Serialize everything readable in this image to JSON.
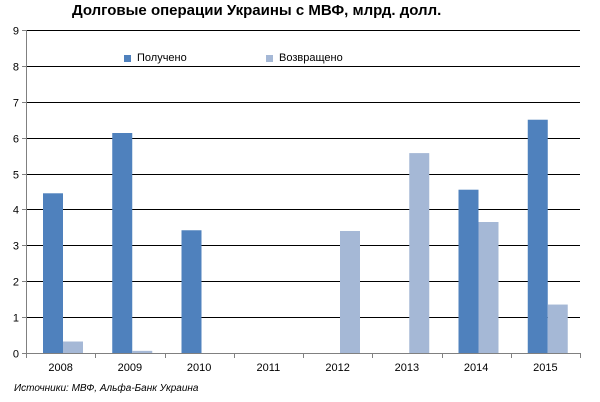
{
  "chart_data": {
    "type": "bar",
    "title": "Долговые операции Украины с МВФ, млрд. долл.",
    "xlabel": "",
    "ylabel": "",
    "ylim": [
      0,
      9
    ],
    "yticks": [
      "0",
      "1",
      "2",
      "3",
      "4",
      "5",
      "6",
      "7",
      "8",
      "9"
    ],
    "categories": [
      "2008",
      "2009",
      "2010",
      "2011",
      "2012",
      "2013",
      "2014",
      "2015"
    ],
    "series": [
      {
        "name": "Получено",
        "color": "#4f81bd",
        "values": [
          4.45,
          6.13,
          3.42,
          0,
          0,
          0,
          4.55,
          6.5
        ]
      },
      {
        "name": "Возвращено",
        "color": "#a5b8d6",
        "values": [
          0.32,
          0.06,
          0,
          0,
          3.4,
          5.57,
          3.65,
          1.35
        ]
      }
    ],
    "grid": true,
    "legend_position": "top-left",
    "source": "Источники: МВФ, Альфа-Банк Украина"
  }
}
